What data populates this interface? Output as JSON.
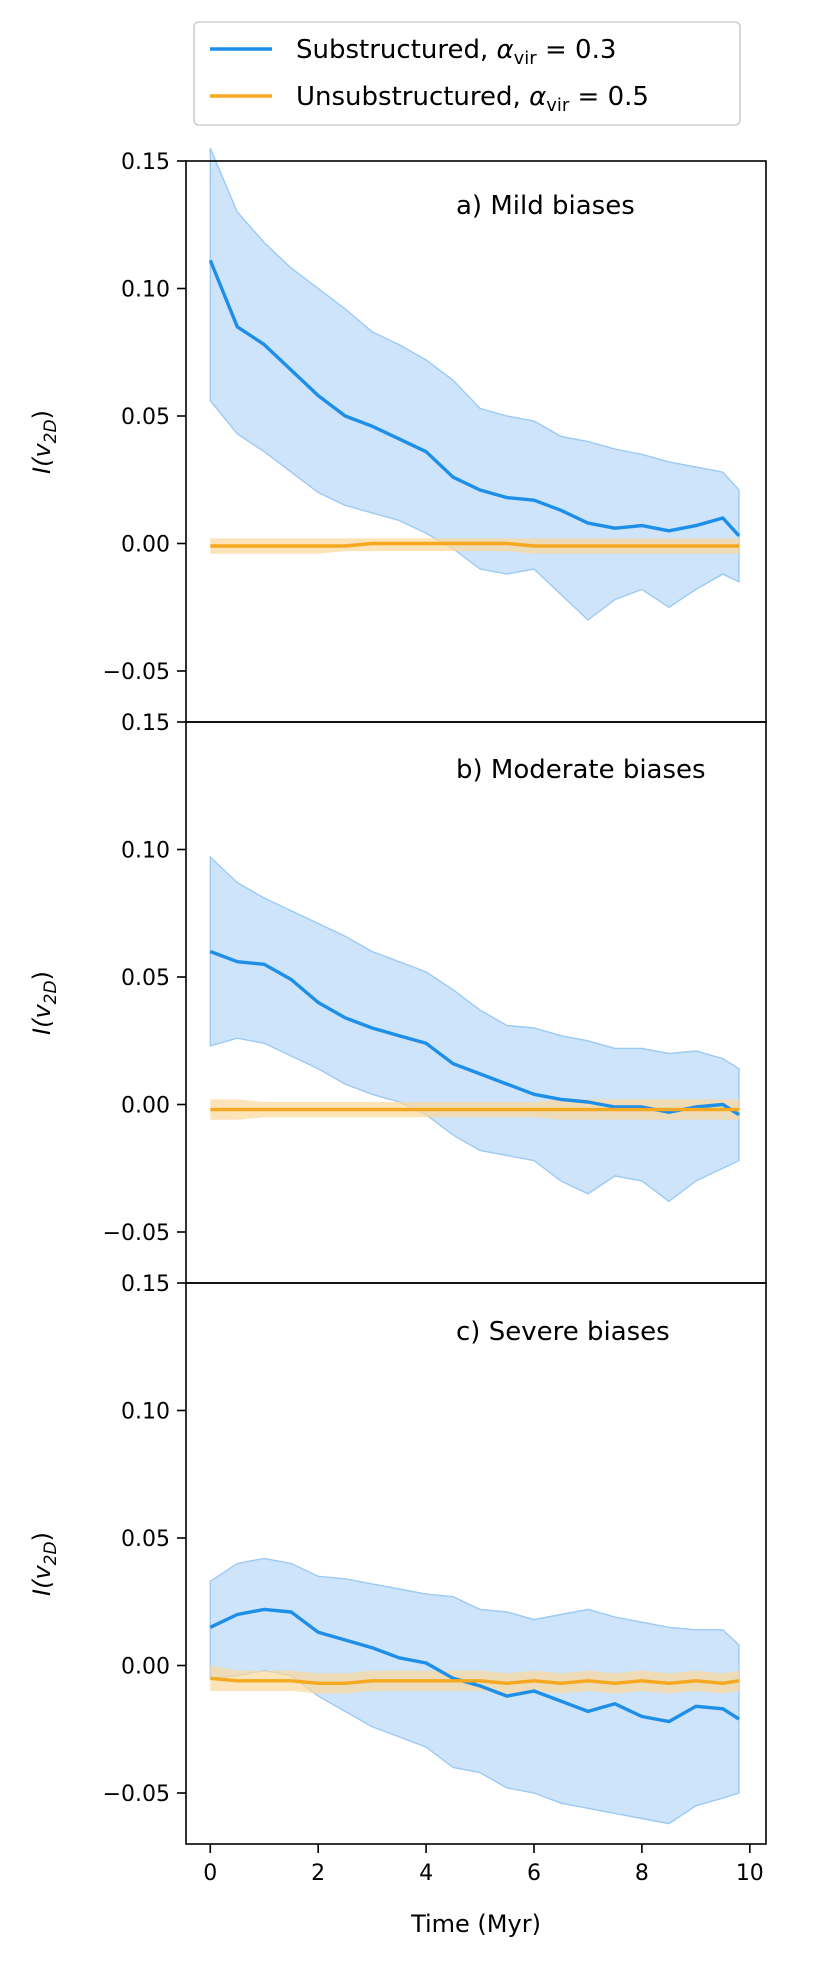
{
  "chart_data": {
    "type": "line",
    "xlabel": "Time (Myr)",
    "xlim": [
      -0.45,
      10.3
    ],
    "xticks": [
      0,
      2,
      4,
      6,
      8,
      10
    ],
    "yticks": [
      -0.05,
      0.0,
      0.05,
      0.1,
      0.15
    ],
    "ytick_labels": [
      "−0.05",
      "0.00",
      "0.05",
      "0.10",
      "0.15"
    ],
    "colors": {
      "substructured": "#1e8fe8",
      "substructured_band": "#cde4fb",
      "substructured_band_edge": "#9dcaf3",
      "unsubstructured": "#f5a820",
      "unsubstructured_band": "#fbd99a"
    },
    "legend": {
      "position": "top-center",
      "entries": [
        {
          "name": "Substructured, αvir = 0.3",
          "prefix": "Substructured, ",
          "symbol": "α",
          "sub": "vir",
          "suffix": " = 0.3",
          "color": "#1e8fe8"
        },
        {
          "name": "Unsubstructured, αvir = 0.5",
          "prefix": "Unsubstructured, ",
          "symbol": "α",
          "sub": "vir",
          "suffix": " = 0.5",
          "color": "#f5a820"
        }
      ]
    },
    "panels": [
      {
        "title": "a) Mild biases",
        "ylabel_main": "I(v",
        "ylabel_sub": "2D",
        "ylabel_close": ")",
        "ylim": [
          -0.07,
          0.15
        ],
        "x": [
          0,
          0.5,
          1,
          1.5,
          2,
          2.5,
          3,
          3.5,
          4,
          4.5,
          5,
          5.5,
          6,
          6.5,
          7,
          7.5,
          8,
          8.5,
          9,
          9.5,
          9.8
        ],
        "series": [
          {
            "name": "Substructured",
            "mean": [
              0.111,
              0.085,
              0.078,
              0.068,
              0.058,
              0.05,
              0.046,
              0.041,
              0.036,
              0.026,
              0.021,
              0.018,
              0.017,
              0.013,
              0.008,
              0.006,
              0.007,
              0.005,
              0.007,
              0.01,
              0.003
            ],
            "upper": [
              0.155,
              0.13,
              0.118,
              0.108,
              0.1,
              0.092,
              0.083,
              0.078,
              0.072,
              0.064,
              0.053,
              0.05,
              0.048,
              0.042,
              0.04,
              0.037,
              0.035,
              0.032,
              0.03,
              0.028,
              0.021
            ],
            "lower": [
              0.056,
              0.043,
              0.036,
              0.028,
              0.02,
              0.015,
              0.012,
              0.009,
              0.004,
              -0.002,
              -0.01,
              -0.012,
              -0.01,
              -0.02,
              -0.03,
              -0.022,
              -0.018,
              -0.025,
              -0.018,
              -0.012,
              -0.015
            ]
          },
          {
            "name": "Unsubstructured",
            "mean": [
              -0.001,
              -0.001,
              -0.001,
              -0.001,
              -0.001,
              -0.001,
              0.0,
              0.0,
              0.0,
              0.0,
              0.0,
              0.0,
              -0.001,
              -0.001,
              -0.001,
              -0.001,
              -0.001,
              -0.001,
              -0.001,
              -0.001,
              -0.001
            ],
            "upper": [
              0.002,
              0.002,
              0.002,
              0.002,
              0.002,
              0.002,
              0.002,
              0.002,
              0.002,
              0.002,
              0.002,
              0.002,
              0.002,
              0.002,
              0.002,
              0.002,
              0.002,
              0.002,
              0.002,
              0.002,
              0.002
            ],
            "lower": [
              -0.004,
              -0.004,
              -0.004,
              -0.004,
              -0.004,
              -0.003,
              -0.003,
              -0.003,
              -0.003,
              -0.003,
              -0.003,
              -0.003,
              -0.004,
              -0.004,
              -0.004,
              -0.004,
              -0.004,
              -0.004,
              -0.004,
              -0.004,
              -0.004
            ]
          }
        ]
      },
      {
        "title": "b) Moderate biases",
        "ylabel_main": "I(v",
        "ylabel_sub": "2D",
        "ylabel_close": ")",
        "ylim": [
          -0.07,
          0.15
        ],
        "x": [
          0,
          0.5,
          1,
          1.5,
          2,
          2.5,
          3,
          3.5,
          4,
          4.5,
          5,
          5.5,
          6,
          6.5,
          7,
          7.5,
          8,
          8.5,
          9,
          9.5,
          9.8
        ],
        "series": [
          {
            "name": "Substructured",
            "mean": [
              0.06,
              0.056,
              0.055,
              0.049,
              0.04,
              0.034,
              0.03,
              0.027,
              0.024,
              0.016,
              0.012,
              0.008,
              0.004,
              0.002,
              0.001,
              -0.001,
              -0.001,
              -0.003,
              -0.001,
              0.0,
              -0.004
            ],
            "upper": [
              0.097,
              0.087,
              0.081,
              0.076,
              0.071,
              0.066,
              0.06,
              0.056,
              0.052,
              0.045,
              0.037,
              0.031,
              0.03,
              0.027,
              0.025,
              0.022,
              0.022,
              0.02,
              0.021,
              0.018,
              0.014
            ],
            "lower": [
              0.023,
              0.026,
              0.024,
              0.019,
              0.014,
              0.008,
              0.004,
              0.001,
              -0.004,
              -0.012,
              -0.018,
              -0.02,
              -0.022,
              -0.03,
              -0.035,
              -0.028,
              -0.03,
              -0.038,
              -0.03,
              -0.025,
              -0.022
            ]
          },
          {
            "name": "Unsubstructured",
            "mean": [
              -0.002,
              -0.002,
              -0.002,
              -0.002,
              -0.002,
              -0.002,
              -0.002,
              -0.002,
              -0.002,
              -0.002,
              -0.002,
              -0.002,
              -0.002,
              -0.002,
              -0.002,
              -0.002,
              -0.002,
              -0.002,
              -0.002,
              -0.002,
              -0.002
            ],
            "upper": [
              0.002,
              0.002,
              0.001,
              0.001,
              0.001,
              0.001,
              0.001,
              0.001,
              0.001,
              0.001,
              0.001,
              0.001,
              0.001,
              0.002,
              0.002,
              0.002,
              0.002,
              0.002,
              0.002,
              0.002,
              0.002
            ],
            "lower": [
              -0.006,
              -0.006,
              -0.005,
              -0.005,
              -0.005,
              -0.005,
              -0.005,
              -0.005,
              -0.005,
              -0.005,
              -0.005,
              -0.005,
              -0.005,
              -0.006,
              -0.006,
              -0.006,
              -0.006,
              -0.006,
              -0.006,
              -0.006,
              -0.006
            ]
          }
        ]
      },
      {
        "title": "c) Severe biases",
        "ylabel_main": "I(v",
        "ylabel_sub": "2D",
        "ylabel_close": ")",
        "ylim": [
          -0.07,
          0.15
        ],
        "x": [
          0,
          0.5,
          1,
          1.5,
          2,
          2.5,
          3,
          3.5,
          4,
          4.5,
          5,
          5.5,
          6,
          6.5,
          7,
          7.5,
          8,
          8.5,
          9,
          9.5,
          9.8
        ],
        "series": [
          {
            "name": "Substructured",
            "mean": [
              0.015,
              0.02,
              0.022,
              0.021,
              0.013,
              0.01,
              0.007,
              0.003,
              0.001,
              -0.005,
              -0.008,
              -0.012,
              -0.01,
              -0.014,
              -0.018,
              -0.015,
              -0.02,
              -0.022,
              -0.016,
              -0.017,
              -0.021
            ],
            "upper": [
              0.033,
              0.04,
              0.042,
              0.04,
              0.035,
              0.034,
              0.032,
              0.03,
              0.028,
              0.027,
              0.022,
              0.021,
              0.018,
              0.02,
              0.022,
              0.019,
              0.017,
              0.015,
              0.014,
              0.014,
              0.008
            ],
            "lower": [
              -0.005,
              -0.004,
              -0.002,
              -0.004,
              -0.012,
              -0.018,
              -0.024,
              -0.028,
              -0.032,
              -0.04,
              -0.042,
              -0.048,
              -0.05,
              -0.054,
              -0.056,
              -0.058,
              -0.06,
              -0.062,
              -0.055,
              -0.052,
              -0.05
            ]
          },
          {
            "name": "Unsubstructured",
            "mean": [
              -0.005,
              -0.006,
              -0.006,
              -0.006,
              -0.007,
              -0.007,
              -0.006,
              -0.006,
              -0.006,
              -0.006,
              -0.006,
              -0.007,
              -0.006,
              -0.007,
              -0.006,
              -0.007,
              -0.006,
              -0.007,
              -0.006,
              -0.007,
              -0.006
            ],
            "upper": [
              0.0,
              -0.002,
              -0.002,
              -0.002,
              -0.003,
              -0.003,
              -0.002,
              -0.002,
              -0.002,
              -0.002,
              -0.002,
              -0.003,
              -0.002,
              -0.003,
              -0.002,
              -0.003,
              -0.002,
              -0.003,
              -0.002,
              -0.003,
              -0.002
            ],
            "lower": [
              -0.01,
              -0.01,
              -0.01,
              -0.01,
              -0.011,
              -0.011,
              -0.01,
              -0.01,
              -0.01,
              -0.01,
              -0.01,
              -0.011,
              -0.01,
              -0.011,
              -0.01,
              -0.011,
              -0.01,
              -0.011,
              -0.01,
              -0.011,
              -0.01
            ]
          }
        ]
      }
    ]
  }
}
